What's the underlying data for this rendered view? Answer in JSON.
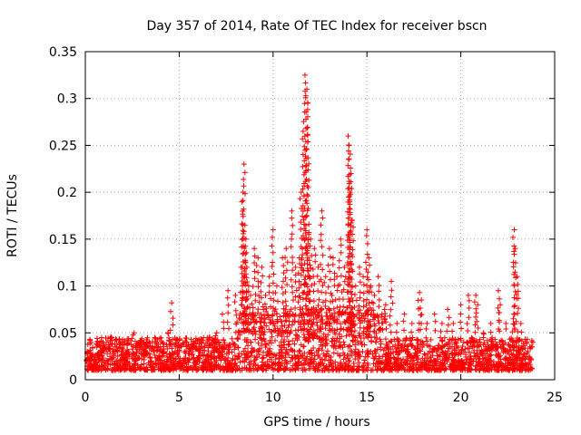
{
  "chart_data": {
    "type": "scatter",
    "title": "Day 357 of 2014, Rate Of TEC Index for receiver bscn",
    "xlabel": "GPS time / hours",
    "ylabel": "ROTI / TECUs",
    "xlim": [
      0,
      25
    ],
    "ylim": [
      0,
      0.35
    ],
    "x_ticks": [
      "0",
      "5",
      "10",
      "15",
      "20",
      "25"
    ],
    "y_ticks": [
      "0",
      "0.05",
      "0.1",
      "0.15",
      "0.2",
      "0.25",
      "0.3",
      "0.35"
    ],
    "grid": true,
    "legend": "none",
    "marker": "plus",
    "color": "#ff0000",
    "series": [
      {
        "x": [
          0.1,
          0.3,
          0.6,
          1.0,
          1.4,
          1.6,
          2.0,
          2.3,
          2.6,
          3.0,
          3.3,
          3.7,
          4.0,
          4.4,
          4.6,
          5.0,
          5.4,
          5.8,
          6.2,
          6.6,
          7.0,
          7.3,
          7.6,
          8.0,
          8.3,
          8.4,
          8.45,
          8.5,
          8.55,
          8.6,
          8.7,
          8.8,
          9.0,
          9.2,
          9.4,
          9.6,
          9.8,
          10.0,
          10.2,
          10.5,
          10.7,
          11.0,
          11.2,
          11.4,
          11.5,
          11.6,
          11.7,
          11.8,
          11.85,
          11.9,
          12.0,
          12.2,
          12.4,
          12.6,
          12.8,
          13.0,
          13.2,
          13.4,
          13.6,
          13.8,
          14.0,
          14.05,
          14.1,
          14.15,
          14.2,
          14.4,
          14.6,
          14.8,
          15.0,
          15.1,
          15.2,
          15.4,
          15.6,
          15.8,
          16.0,
          16.3,
          16.6,
          17.0,
          17.4,
          17.8,
          17.9,
          18.2,
          18.6,
          19.0,
          19.3,
          19.6,
          20.0,
          20.4,
          20.8,
          20.9,
          21.2,
          21.6,
          22.0,
          22.1,
          22.4,
          22.8,
          22.85,
          22.9,
          23.0,
          23.2,
          23.5,
          23.8
        ],
        "y": [
          0.03,
          0.04,
          0.035,
          0.03,
          0.045,
          0.035,
          0.04,
          0.03,
          0.05,
          0.035,
          0.04,
          0.045,
          0.035,
          0.05,
          0.082,
          0.03,
          0.04,
          0.035,
          0.04,
          0.045,
          0.05,
          0.07,
          0.095,
          0.09,
          0.12,
          0.2,
          0.23,
          0.165,
          0.15,
          0.12,
          0.1,
          0.09,
          0.14,
          0.13,
          0.12,
          0.09,
          0.11,
          0.16,
          0.1,
          0.13,
          0.14,
          0.18,
          0.12,
          0.13,
          0.2,
          0.265,
          0.325,
          0.31,
          0.295,
          0.155,
          0.15,
          0.14,
          0.12,
          0.18,
          0.11,
          0.14,
          0.13,
          0.11,
          0.15,
          0.12,
          0.26,
          0.25,
          0.2,
          0.22,
          0.17,
          0.1,
          0.12,
          0.11,
          0.16,
          0.13,
          0.1,
          0.09,
          0.11,
          0.07,
          0.08,
          0.105,
          0.06,
          0.07,
          0.06,
          0.093,
          0.085,
          0.06,
          0.07,
          0.06,
          0.075,
          0.06,
          0.08,
          0.09,
          0.09,
          0.08,
          0.05,
          0.06,
          0.095,
          0.08,
          0.06,
          0.065,
          0.16,
          0.14,
          0.11,
          0.06,
          0.04,
          0.035
        ],
        "band_floor": 0.01,
        "band_top": 0.045
      }
    ]
  }
}
